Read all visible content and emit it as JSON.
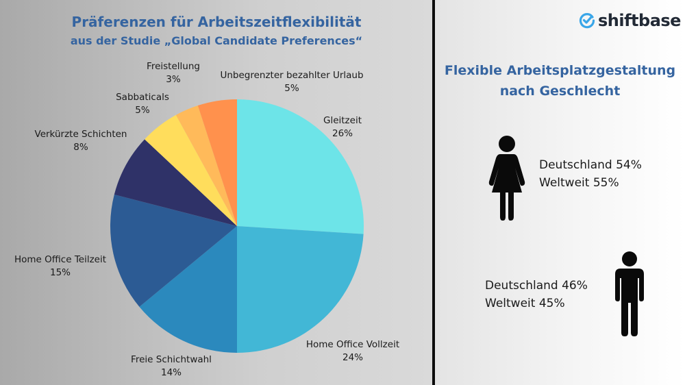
{
  "chart_data": {
    "type": "pie",
    "title": "Präferenzen für Arbeitszeitflexibilität",
    "subtitle": "aus der Studie „Global Candidate Preferences“",
    "slices": [
      {
        "label": "Gleitzeit",
        "value": 26,
        "text": "26%",
        "color": "#6de4e8"
      },
      {
        "label": "Home Office Vollzeit",
        "value": 24,
        "text": "24%",
        "color": "#42b7d6"
      },
      {
        "label": "Freie Schichtwahl",
        "value": 14,
        "text": "14%",
        "color": "#2b89bd"
      },
      {
        "label": "Home Office Teilzeit",
        "value": 15,
        "text": "15%",
        "color": "#2c5b94"
      },
      {
        "label": "Verkürzte Schichten",
        "value": 8,
        "text": "8%",
        "color": "#2f3268"
      },
      {
        "label": "Sabbaticals",
        "value": 5,
        "text": "5%",
        "color": "#ffdd5c"
      },
      {
        "label": "Freistellung",
        "value": 3,
        "text": "3%",
        "color": "#ffba5a"
      },
      {
        "label": "Unbegrenzter bezahlter Urlaub",
        "value": 5,
        "text": "5%",
        "color": "#ff914d"
      }
    ],
    "start": "top",
    "direction": "clockwise"
  },
  "brand": {
    "name": "shiftbase",
    "color": "#3aa6e8"
  },
  "gender": {
    "title_line1": "Flexible Arbeitsplatzgestaltung",
    "title_line2": "nach Geschlecht",
    "female": {
      "icon": "woman-icon",
      "line1": "Deutschland 54%",
      "line2": "Weltweit 55%"
    },
    "male": {
      "icon": "man-icon",
      "line1": "Deutschland 46%",
      "line2": "Weltweit 45%"
    }
  }
}
